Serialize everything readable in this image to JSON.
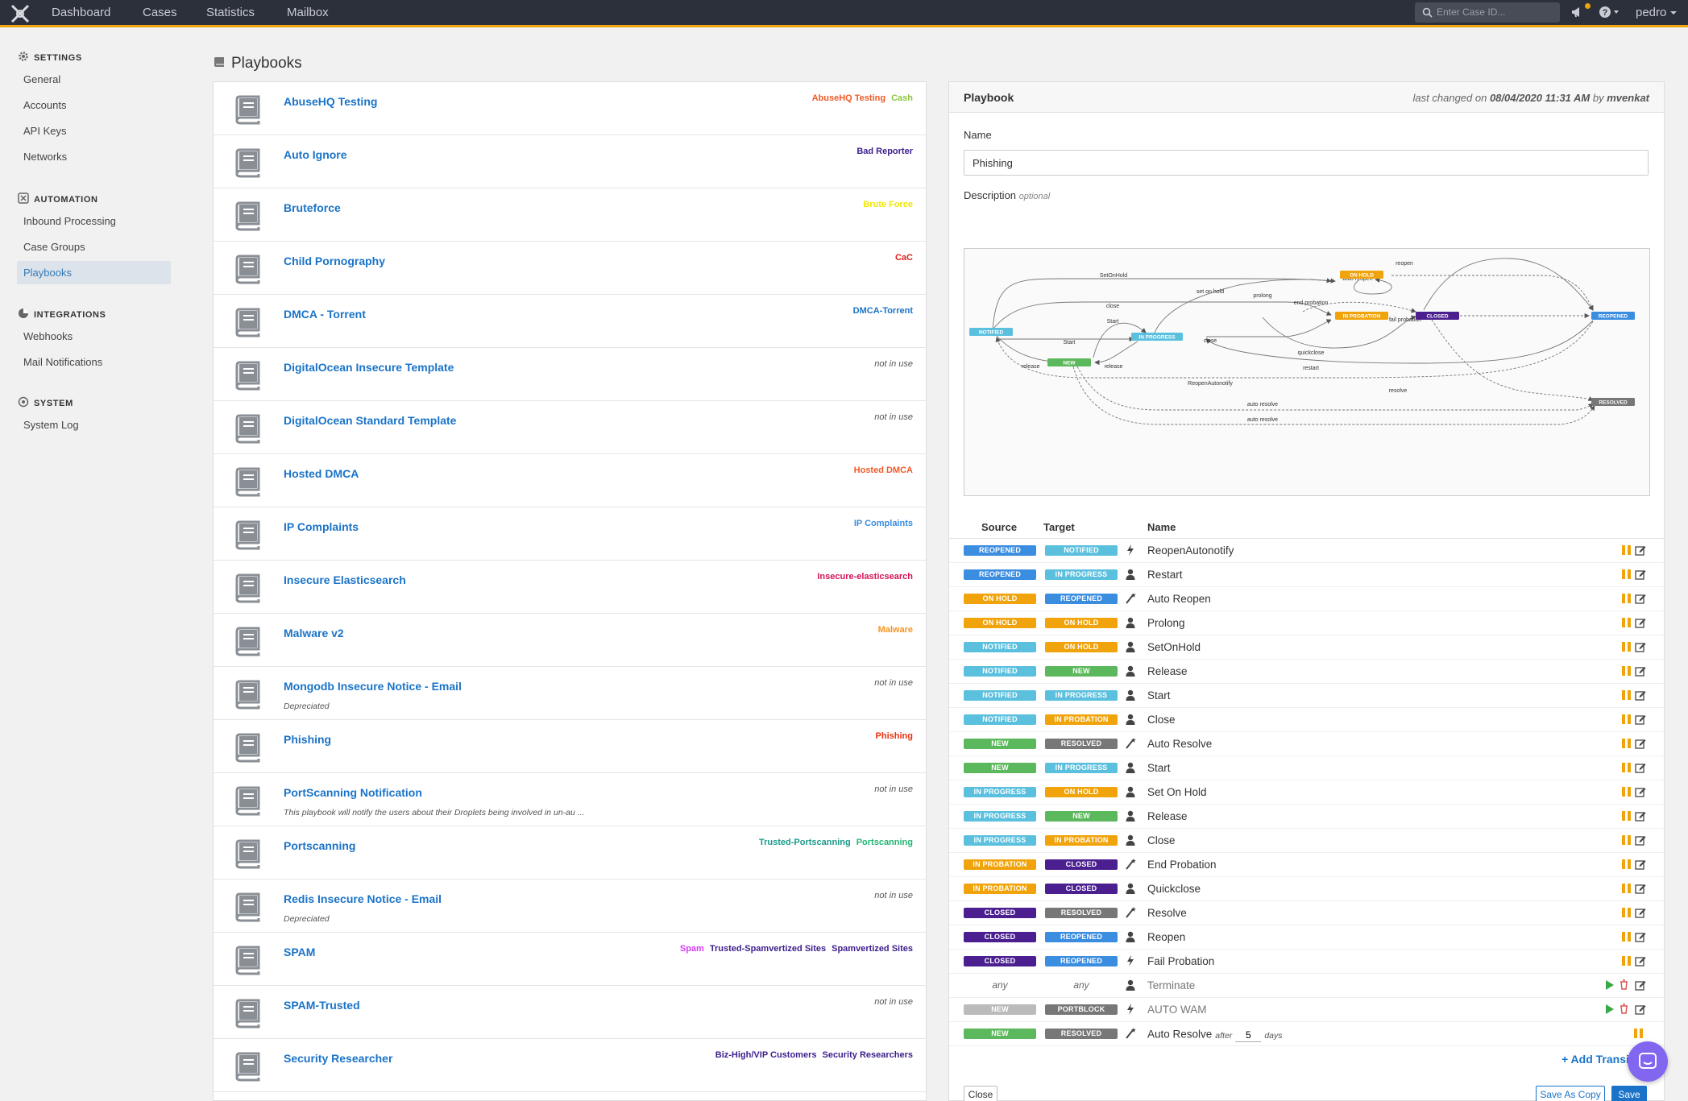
{
  "nav": {
    "items": [
      "Dashboard",
      "Cases",
      "Statistics",
      "Mailbox"
    ],
    "search_placeholder": "Enter Case ID...",
    "user": "pedro"
  },
  "sidebar": {
    "sections": [
      {
        "title": "SETTINGS",
        "icon": "gear-icon",
        "items": [
          "General",
          "Accounts",
          "API Keys",
          "Networks"
        ]
      },
      {
        "title": "AUTOMATION",
        "icon": "automation-icon",
        "items": [
          "Inbound Processing",
          "Case Groups",
          "Playbooks"
        ]
      },
      {
        "title": "INTEGRATIONS",
        "icon": "integrations-icon",
        "items": [
          "Webhooks",
          "Mail Notifications"
        ]
      },
      {
        "title": "SYSTEM",
        "icon": "system-icon",
        "items": [
          "System Log"
        ]
      }
    ],
    "active_item": "Playbooks"
  },
  "page": {
    "title": "Playbooks"
  },
  "playbooks": [
    {
      "name": "AbuseHQ Testing",
      "tags": [
        {
          "text": "AbuseHQ Testing",
          "color": "#f05a28"
        },
        {
          "text": "Cash",
          "color": "#8cc63f"
        }
      ]
    },
    {
      "name": "Auto Ignore",
      "tags": [
        {
          "text": "Bad Reporter",
          "color": "#3c1e8c"
        }
      ]
    },
    {
      "name": "Bruteforce",
      "tags": [
        {
          "text": "Brute Force",
          "color": "#f2e600"
        }
      ]
    },
    {
      "name": "Child Pornography",
      "tags": [
        {
          "text": "CaC",
          "color": "#e0201e"
        }
      ]
    },
    {
      "name": "DMCA - Torrent",
      "tags": [
        {
          "text": "DMCA-Torrent",
          "color": "#1a73c8"
        }
      ]
    },
    {
      "name": "DigitalOcean Insecure Template",
      "not_in_use": "not in use"
    },
    {
      "name": "DigitalOcean Standard Template",
      "not_in_use": "not in use"
    },
    {
      "name": "Hosted DMCA",
      "tags": [
        {
          "text": "Hosted DMCA",
          "color": "#f05a28"
        }
      ]
    },
    {
      "name": "IP Complaints",
      "tags": [
        {
          "text": "IP Complaints",
          "color": "#3b8de0"
        }
      ]
    },
    {
      "name": "Insecure Elasticsearch",
      "tags": [
        {
          "text": "Insecure-elasticsearch",
          "color": "#d4145a"
        }
      ]
    },
    {
      "name": "Malware v2",
      "tags": [
        {
          "text": "Malware",
          "color": "#f7931e"
        }
      ]
    },
    {
      "name": "Mongodb Insecure Notice - Email",
      "desc": "Depreciated",
      "not_in_use": "not in use"
    },
    {
      "name": "Phishing",
      "tags": [
        {
          "text": "Phishing",
          "color": "#e8330f"
        }
      ]
    },
    {
      "name": "PortScanning Notification",
      "desc": "This playbook will notify the users about their Droplets being involved in un-au ...",
      "not_in_use": "not in use"
    },
    {
      "name": "Portscanning",
      "tags": [
        {
          "text": "Trusted-Portscanning",
          "color": "#1a9a8a"
        },
        {
          "text": "Portscanning",
          "color": "#22b573"
        }
      ]
    },
    {
      "name": "Redis Insecure Notice - Email",
      "desc": "Depreciated",
      "not_in_use": "not in use"
    },
    {
      "name": "SPAM",
      "tags": [
        {
          "text": "Spam",
          "color": "#d63af9"
        },
        {
          "text": "Trusted-Spamvertized Sites",
          "color": "#3c1e8c"
        },
        {
          "text": "Spamvertized Sites",
          "color": "#3c1e8c"
        }
      ]
    },
    {
      "name": "SPAM-Trusted",
      "not_in_use": "not in use"
    },
    {
      "name": "Security Researcher",
      "tags": [
        {
          "text": "Biz-High/VIP Customers",
          "color": "#3c1e8c"
        },
        {
          "text": "Security Researchers",
          "color": "#3c1e8c"
        }
      ]
    }
  ],
  "detail": {
    "title": "Playbook",
    "last_changed_prefix": "last changed on",
    "last_changed_date": "08/04/2020 11:31 AM",
    "last_changed_by_word": "by",
    "last_changed_user": "mvenkat",
    "name_label": "Name",
    "name_value": "Phishing",
    "description_label": "Description",
    "description_optional": "optional",
    "graph": {
      "states": [
        "NOTIFIED",
        "NEW",
        "IN PROGRESS",
        "ON HOLD",
        "IN PROBATION",
        "CLOSED",
        "REOPENED",
        "RESOLVED"
      ],
      "edge_labels": [
        "SetOnHold",
        "set on hold",
        "prolong",
        "auto reopen",
        "reopen",
        "close",
        "end probation",
        "fail probation",
        "Start",
        "Start",
        "close",
        "quickclose",
        "release",
        "release",
        "restart",
        "ReopenAutonotify",
        "resolve",
        "auto resolve",
        "auto resolve"
      ]
    },
    "table_headers": {
      "source": "Source",
      "target": "Target",
      "name": "Name"
    },
    "transitions": [
      {
        "source": "REOPENED",
        "target": "NOTIFIED",
        "icon": "lightning-icon",
        "name": "ReopenAutonotify"
      },
      {
        "source": "REOPENED",
        "target": "IN PROGRESS",
        "icon": "user-icon",
        "name": "Restart"
      },
      {
        "source": "ON HOLD",
        "target": "REOPENED",
        "icon": "wand-icon",
        "name": "Auto Reopen"
      },
      {
        "source": "ON HOLD",
        "target": "ON HOLD",
        "icon": "user-icon",
        "name": "Prolong"
      },
      {
        "source": "NOTIFIED",
        "target": "ON HOLD",
        "icon": "user-icon",
        "name": "SetOnHold"
      },
      {
        "source": "NOTIFIED",
        "target": "NEW",
        "icon": "user-icon",
        "name": "Release"
      },
      {
        "source": "NOTIFIED",
        "target": "IN PROGRESS",
        "icon": "user-icon",
        "name": "Start"
      },
      {
        "source": "NOTIFIED",
        "target": "IN PROBATION",
        "icon": "user-icon",
        "name": "Close"
      },
      {
        "source": "NEW",
        "target": "RESOLVED",
        "icon": "wand-icon",
        "name": "Auto Resolve"
      },
      {
        "source": "NEW",
        "target": "IN PROGRESS",
        "icon": "user-icon",
        "name": "Start"
      },
      {
        "source": "IN PROGRESS",
        "target": "ON HOLD",
        "icon": "user-icon",
        "name": "Set On Hold"
      },
      {
        "source": "IN PROGRESS",
        "target": "NEW",
        "icon": "user-icon",
        "name": "Release"
      },
      {
        "source": "IN PROGRESS",
        "target": "IN PROBATION",
        "icon": "user-icon",
        "name": "Close"
      },
      {
        "source": "IN PROBATION",
        "target": "CLOSED",
        "icon": "wand-icon",
        "name": "End Probation"
      },
      {
        "source": "IN PROBATION",
        "target": "CLOSED",
        "icon": "user-icon",
        "name": "Quickclose"
      },
      {
        "source": "CLOSED",
        "target": "RESOLVED",
        "icon": "wand-icon",
        "name": "Resolve"
      },
      {
        "source": "CLOSED",
        "target": "REOPENED",
        "icon": "user-icon",
        "name": "Reopen"
      },
      {
        "source": "CLOSED",
        "target": "REOPENED",
        "icon": "lightning-icon",
        "name": "Fail Probation"
      },
      {
        "source": "any",
        "target": "any",
        "icon": "user-icon",
        "name": "Terminate",
        "muted": true
      },
      {
        "source": "NEW",
        "target": "PORTBLOCK",
        "icon": "lightning-icon",
        "name": "AUTO WAM",
        "muted_source": true
      },
      {
        "source": "NEW",
        "target": "RESOLVED",
        "icon": "wand-icon",
        "name": "Auto Resolve",
        "after_word": "after",
        "after_value": "5",
        "days_word": "days"
      }
    ],
    "add_transition_label": "+ Add Transi",
    "close_label": "Close",
    "save_as_copy_label": "Save As Copy",
    "save_label": "Save"
  },
  "state_colors": {
    "NOTIFIED": "#5bc0de",
    "NEW": "#5cb85c",
    "IN PROGRESS": "#5bc0de",
    "ON HOLD": "#f0a30a",
    "IN PROBATION": "#f0a30a",
    "CLOSED": "#4b1f8f",
    "REOPENED": "#3b8de0",
    "RESOLVED": "#777777",
    "PORTBLOCK": "#777777"
  }
}
